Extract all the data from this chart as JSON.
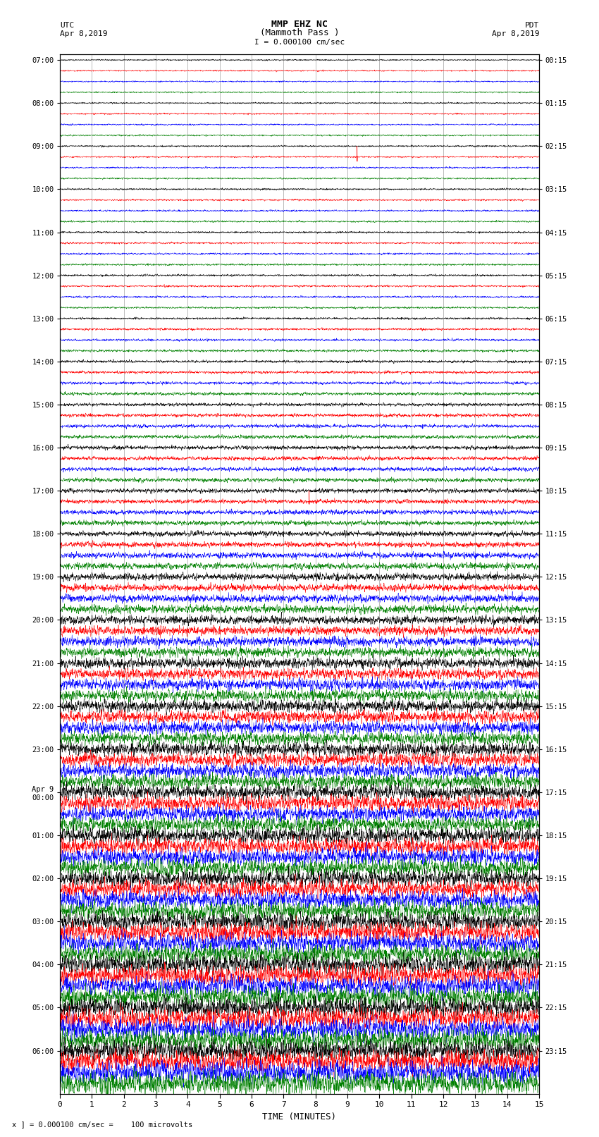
{
  "title_line1": "MMP EHZ NC",
  "title_line2": "(Mammoth Pass )",
  "scale_text": "I = 0.000100 cm/sec",
  "utc_label": "UTC",
  "utc_date": "Apr 8,2019",
  "pdt_label": "PDT",
  "pdt_date": "Apr 8,2019",
  "xlabel": "TIME (MINUTES)",
  "bottom_note": "x ] = 0.000100 cm/sec =    100 microvolts",
  "x_ticks": [
    0,
    1,
    2,
    3,
    4,
    5,
    6,
    7,
    8,
    9,
    10,
    11,
    12,
    13,
    14,
    15
  ],
  "left_times": [
    "07:00",
    "08:00",
    "09:00",
    "10:00",
    "11:00",
    "12:00",
    "13:00",
    "14:00",
    "15:00",
    "16:00",
    "17:00",
    "18:00",
    "19:00",
    "20:00",
    "21:00",
    "22:00",
    "23:00",
    "Apr 9\n00:00",
    "01:00",
    "02:00",
    "03:00",
    "04:00",
    "05:00",
    "06:00"
  ],
  "right_times": [
    "00:15",
    "01:15",
    "02:15",
    "03:15",
    "04:15",
    "05:15",
    "06:15",
    "07:15",
    "08:15",
    "09:15",
    "10:15",
    "11:15",
    "12:15",
    "13:15",
    "14:15",
    "15:15",
    "16:15",
    "17:15",
    "18:15",
    "19:15",
    "20:15",
    "21:15",
    "22:15",
    "23:15"
  ],
  "trace_colors": [
    "black",
    "red",
    "blue",
    "green"
  ],
  "n_hours": 24,
  "traces_per_hour": 4,
  "n_points": 3000,
  "x_min": 0,
  "x_max": 15,
  "bg_color": "white",
  "grid_color": "#666666",
  "seismogram_seed": 42
}
